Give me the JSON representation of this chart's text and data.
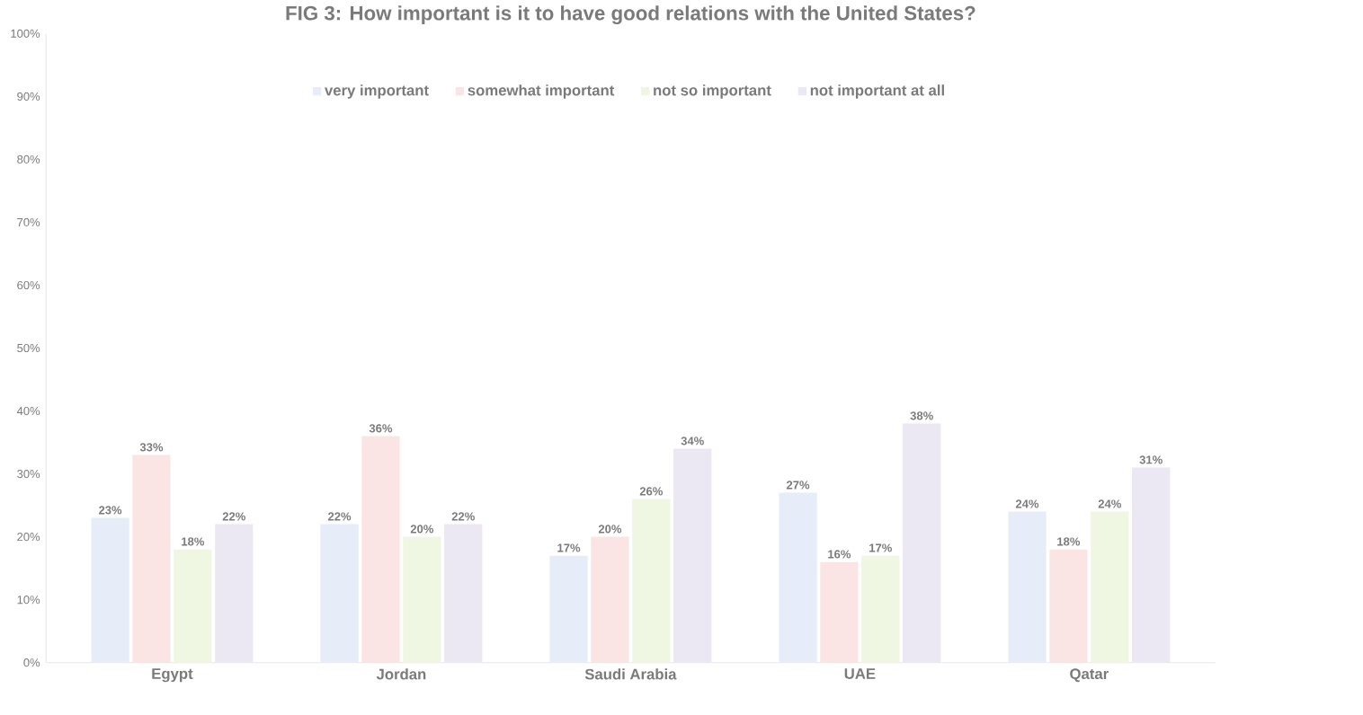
{
  "chart_data": {
    "type": "bar",
    "title": "FIG 3: How important is it to have good relations with the United States?",
    "categories": [
      "Egypt",
      "Jordan",
      "Saudi Arabia",
      "UAE",
      "Qatar"
    ],
    "series": [
      {
        "name": "very important",
        "color": "#e6edf8",
        "values": [
          23,
          22,
          17,
          27,
          24
        ],
        "value_labels": [
          "23%",
          "22%",
          "17%",
          "27%",
          "24%"
        ]
      },
      {
        "name": "somewhat important",
        "color": "#fbe4e4",
        "values": [
          33,
          36,
          20,
          16,
          18
        ],
        "value_labels": [
          "33%",
          "36%",
          "20%",
          "16%",
          "18%"
        ]
      },
      {
        "name": "not so important",
        "color": "#eff6e2",
        "values": [
          18,
          20,
          26,
          17,
          24
        ],
        "value_labels": [
          "18%",
          "20%",
          "26%",
          "17%",
          "24%"
        ]
      },
      {
        "name": "not important at all",
        "color": "#ebe7f3",
        "values": [
          22,
          22,
          34,
          38,
          31
        ],
        "value_labels": [
          "22%",
          "22%",
          "34%",
          "38%",
          "31%"
        ]
      }
    ],
    "ylim": [
      0,
      100
    ],
    "yticks": [
      {
        "value": 0,
        "label": "0%"
      },
      {
        "value": 10,
        "label": "10%"
      },
      {
        "value": 20,
        "label": "20%"
      },
      {
        "value": 30,
        "label": "30%"
      },
      {
        "value": 40,
        "label": "40%"
      },
      {
        "value": 50,
        "label": "50%"
      },
      {
        "value": 60,
        "label": "60%"
      },
      {
        "value": 70,
        "label": "70%"
      },
      {
        "value": 80,
        "label": "80%"
      },
      {
        "value": 90,
        "label": "90%"
      },
      {
        "value": 100,
        "label": "100%"
      }
    ],
    "grid": false,
    "legend": "top"
  }
}
